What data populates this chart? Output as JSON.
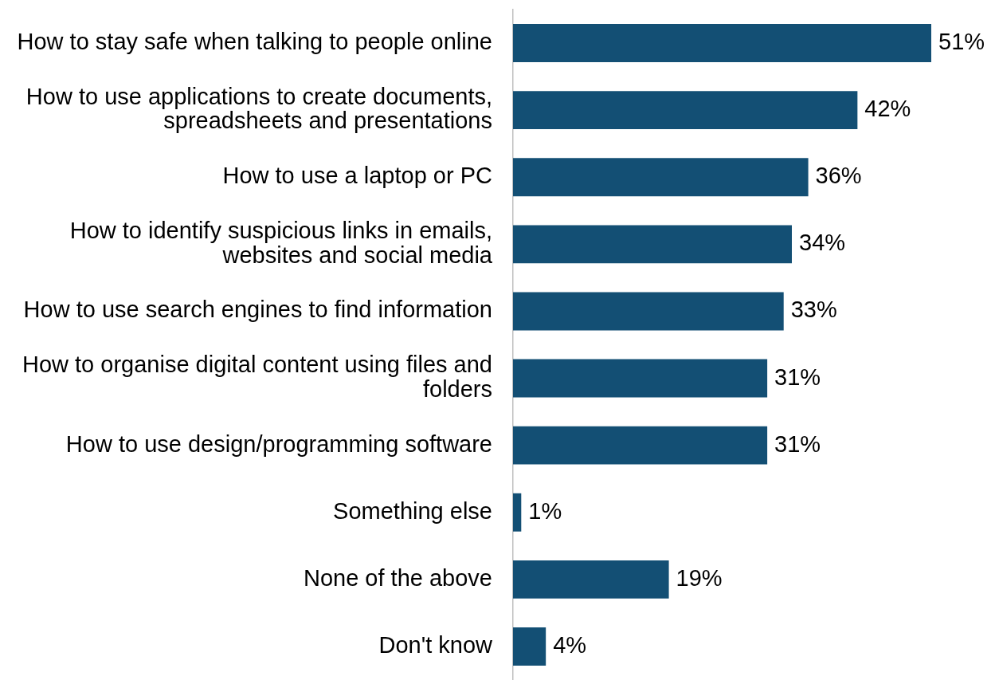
{
  "chart_data": {
    "type": "bar",
    "orientation": "horizontal",
    "categories": [
      "How to stay safe when talking to people online",
      "How to use applications to create documents,\nspreadsheets and presentations",
      "How to use a laptop or PC",
      "How to identify suspicious links in emails,\nwebsites and social media",
      "How to use search engines to find information",
      "How to organise digital content using files and\nfolders",
      "How to use design/programming software",
      "Something else",
      "None of the above",
      "Don't know"
    ],
    "values": [
      51,
      42,
      36,
      34,
      33,
      31,
      31,
      1,
      19,
      4
    ],
    "value_labels": [
      "51%",
      "42%",
      "36%",
      "34%",
      "33%",
      "31%",
      "31%",
      "1%",
      "19%",
      "4%"
    ],
    "color": "#134f74",
    "legend": false,
    "tick_labels": "y"
  }
}
